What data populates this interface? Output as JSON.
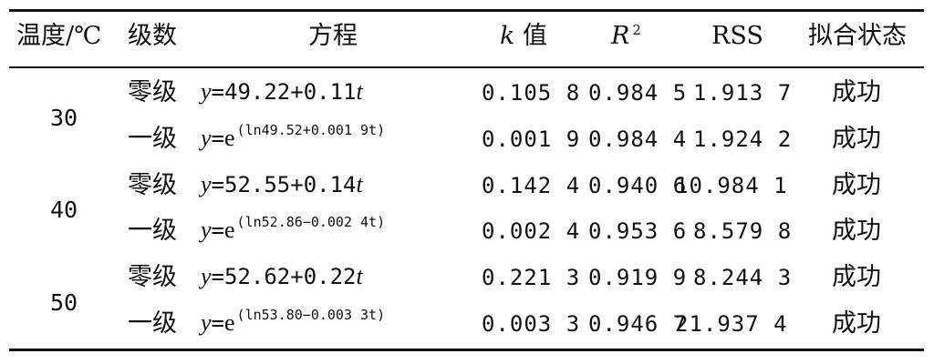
{
  "header": {
    "temperature": "温度/℃",
    "order": "级数",
    "equation": "方程",
    "k_var": "k",
    "k_suffix": "值",
    "r2_base": "R",
    "r2_exp": "2",
    "rss": "RSS",
    "fit_status": "拟合状态"
  },
  "groups": [
    {
      "temperature": "30"
    },
    {
      "temperature": "40"
    },
    {
      "temperature": "50"
    }
  ],
  "rows": [
    {
      "order": "零级",
      "eq_var": "y",
      "eq_rest": "=49.22+0.11",
      "eq_t": "t",
      "eq_type": "linear",
      "k": "0.105 8",
      "r2": "0.984 5",
      "rss": "1.913 7",
      "status": "成功"
    },
    {
      "order": "一级",
      "eq_var": "y",
      "eq_rest": "=",
      "eq_e": "e",
      "eq_exp": "(ln49.52+0.001 9t)",
      "eq_type": "exp",
      "k": "0.001 9",
      "r2": "0.984 4",
      "rss": "1.924 2",
      "status": "成功"
    },
    {
      "order": "零级",
      "eq_var": "y",
      "eq_rest": "=52.55+0.14",
      "eq_t": "t",
      "eq_type": "linear",
      "k": "0.142 4",
      "r2": "0.940 6",
      "rss": "10.984 1",
      "status": "成功"
    },
    {
      "order": "一级",
      "eq_var": "y",
      "eq_rest": "=",
      "eq_e": "e",
      "eq_exp": "(ln52.86−0.002 4t)",
      "eq_type": "exp",
      "k": "0.002 4",
      "r2": "0.953 6",
      "rss": "8.579 8",
      "status": "成功"
    },
    {
      "order": "零级",
      "eq_var": "y",
      "eq_rest": "=52.62+0.22",
      "eq_t": "t",
      "eq_type": "linear",
      "k": "0.221 3",
      "r2": "0.919 9",
      "rss": "8.244 3",
      "status": "成功"
    },
    {
      "order": "一级",
      "eq_var": "y",
      "eq_rest": "=",
      "eq_e": "e",
      "eq_exp": "(ln53.80−0.003 3t)",
      "eq_type": "exp",
      "k": "0.003 3",
      "r2": "0.946 7",
      "rss": "21.937 4",
      "status": "成功"
    }
  ]
}
